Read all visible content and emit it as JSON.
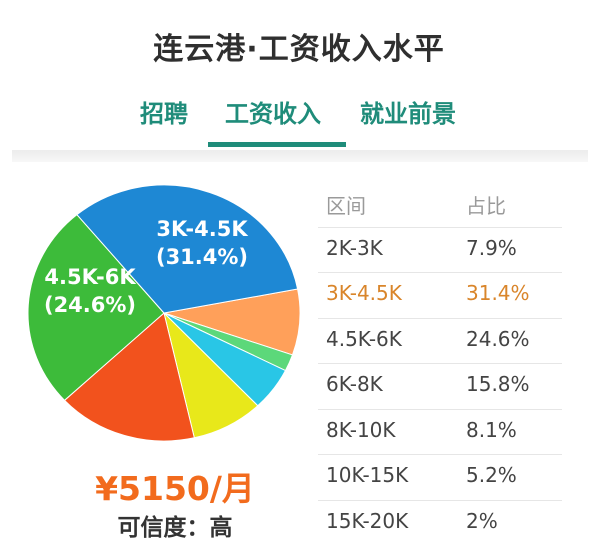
{
  "title": "连云港·工资收入水平",
  "tabs": [
    {
      "label": "招聘"
    },
    {
      "label": "工资收入",
      "active": true
    },
    {
      "label": "就业前景"
    }
  ],
  "colors": {
    "accent": "#1f8c7a",
    "highlight": "#d9852a",
    "salary": "#f26b1d"
  },
  "chart_data": {
    "type": "pie",
    "slices": [
      {
        "name": "2K-3K",
        "value": 7.9,
        "color": "#ffa05a"
      },
      {
        "name": "3K-4.5K",
        "value": 31.4,
        "color": "#1e88d4"
      },
      {
        "name": "4.5K-6K",
        "value": 24.6,
        "color": "#3dbb3a"
      },
      {
        "name": "6K-8K",
        "value": 15.8,
        "color": "#f2521d"
      },
      {
        "name": "8K-10K",
        "value": 8.1,
        "color": "#e8e81a"
      },
      {
        "name": "10K-15K",
        "value": 5.2,
        "color": "#29c6e6"
      },
      {
        "name": "15K-20K",
        "value": 2,
        "color": "#5cd87a"
      }
    ],
    "slice_labels": [
      {
        "line1": "3K-4.5K",
        "line2": "(31.4%)"
      },
      {
        "line1": "4.5K-6K",
        "line2": "(24.6%)"
      }
    ]
  },
  "salary": "¥5150/月",
  "confidence": "可信度：高",
  "table": {
    "headers": [
      "区间",
      "占比"
    ],
    "rows": [
      {
        "range": "2K-3K",
        "pct": "7.9%"
      },
      {
        "range": "3K-4.5K",
        "pct": "31.4%",
        "highlight": true
      },
      {
        "range": "4.5K-6K",
        "pct": "24.6%"
      },
      {
        "range": "6K-8K",
        "pct": "15.8%"
      },
      {
        "range": "8K-10K",
        "pct": "8.1%"
      },
      {
        "range": "10K-15K",
        "pct": "5.2%"
      },
      {
        "range": "15K-20K",
        "pct": "2%"
      }
    ]
  }
}
